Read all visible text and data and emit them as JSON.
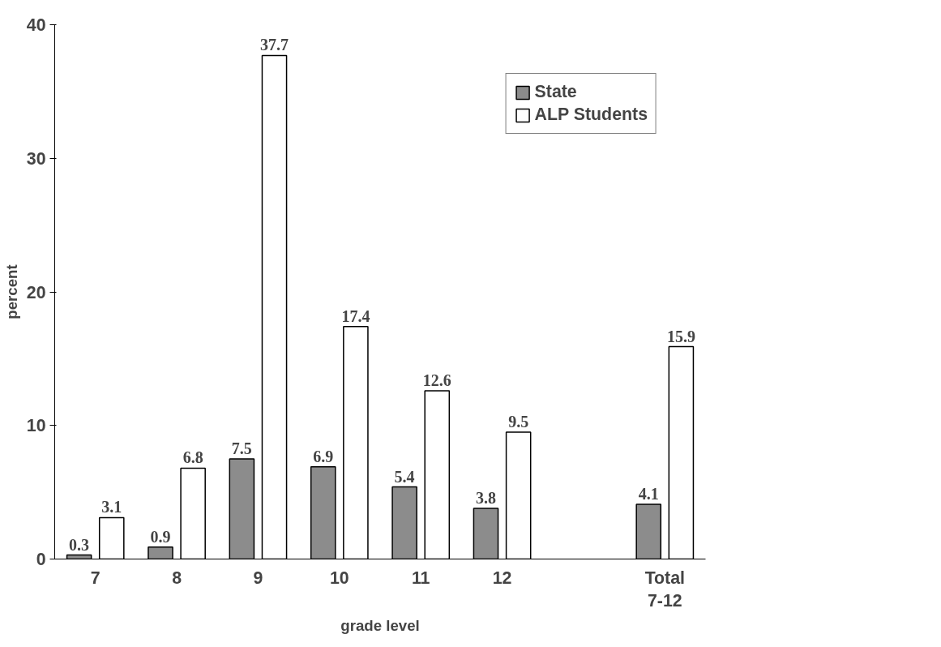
{
  "chart_data": {
    "type": "bar",
    "xlabel": "grade level",
    "ylabel": "percent",
    "categories": [
      "7",
      "8",
      "9",
      "10",
      "11",
      "12",
      null,
      "Total 7-12"
    ],
    "series": [
      {
        "name": "State",
        "color": "#8c8c8c",
        "values": [
          0.3,
          0.9,
          7.5,
          6.9,
          5.4,
          3.8,
          null,
          4.1
        ]
      },
      {
        "name": "ALP Students",
        "color": "#ffffff",
        "values": [
          3.1,
          6.8,
          37.7,
          17.4,
          12.6,
          9.5,
          null,
          15.9
        ]
      }
    ],
    "ylim": [
      0,
      40
    ],
    "yticks": [
      0,
      10,
      20,
      30,
      40
    ],
    "grid": false,
    "legend": "top right",
    "data_labels": true
  }
}
